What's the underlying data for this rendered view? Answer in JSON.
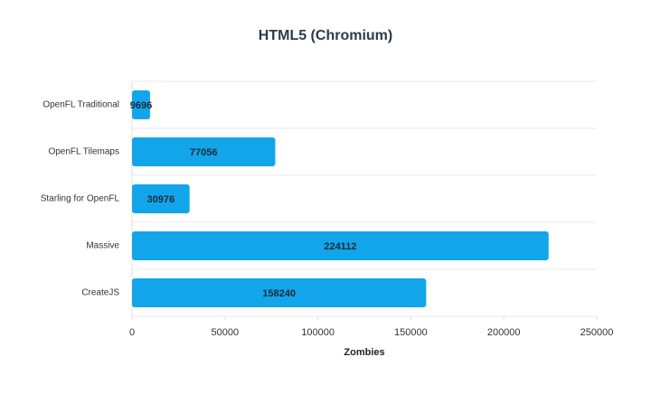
{
  "chart_data": {
    "type": "bar",
    "orientation": "horizontal",
    "title": "HTML5 (Chromium)",
    "categories": [
      "OpenFL Traditional",
      "OpenFL Tilemaps",
      "Starling for OpenFL",
      "Massive",
      "CreateJS"
    ],
    "values": [
      9696,
      77056,
      30976,
      224112,
      158240
    ],
    "color": "#12a5ea",
    "x_label": "Zombies",
    "xlim": [
      0,
      250000
    ],
    "xticks": [
      0,
      50000,
      100000,
      150000,
      200000,
      250000
    ],
    "data_labels": true
  }
}
